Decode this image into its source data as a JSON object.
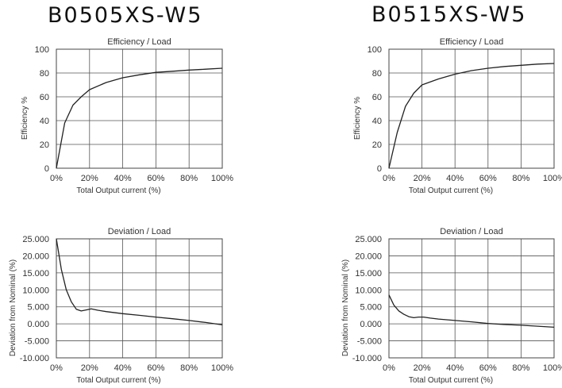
{
  "titles": [
    "B0505XS-W5",
    "B0515XS-W5"
  ],
  "chart_data": [
    {
      "type": "line",
      "model": "B0505XS-W5",
      "title": "Efficiency / Load",
      "xlabel": "Total Output current (%)",
      "ylabel": "Efficiency %",
      "xlim": [
        0,
        100
      ],
      "ylim": [
        0,
        100
      ],
      "x_ticks": [
        0,
        20,
        40,
        60,
        80,
        100
      ],
      "x_tick_labels": [
        "0%",
        "20%",
        "40%",
        "60%",
        "80%",
        "100%"
      ],
      "y_ticks": [
        0,
        20,
        40,
        60,
        80,
        100
      ],
      "y_tick_labels": [
        "0",
        "20",
        "40",
        "60",
        "80",
        "100"
      ],
      "grid": true,
      "series": [
        {
          "x": [
            0,
            5,
            10,
            15,
            20,
            30,
            40,
            50,
            60,
            70,
            80,
            90,
            100
          ],
          "y": [
            0,
            38,
            53,
            60,
            66,
            72,
            76,
            78.5,
            80.5,
            81.5,
            82.5,
            83.2,
            84
          ]
        }
      ]
    },
    {
      "type": "line",
      "model": "B0515XS-W5",
      "title": "Efficiency / Load",
      "xlabel": "Total Output current (%)",
      "ylabel": "Efficiency %",
      "xlim": [
        0,
        100
      ],
      "ylim": [
        0,
        100
      ],
      "x_ticks": [
        0,
        20,
        40,
        60,
        80,
        100
      ],
      "x_tick_labels": [
        "0%",
        "20%",
        "40%",
        "60%",
        "80%",
        "100%"
      ],
      "y_ticks": [
        0,
        20,
        40,
        60,
        80,
        100
      ],
      "y_tick_labels": [
        "0",
        "20",
        "40",
        "60",
        "80",
        "100"
      ],
      "grid": true,
      "series": [
        {
          "x": [
            0,
            5,
            10,
            15,
            20,
            30,
            40,
            50,
            60,
            70,
            80,
            90,
            100
          ],
          "y": [
            0,
            30,
            52,
            63,
            70,
            75,
            79,
            82,
            84,
            85.5,
            86.5,
            87.5,
            88
          ]
        }
      ]
    },
    {
      "type": "line",
      "model": "B0505XS-W5",
      "title": "Deviation / Load",
      "xlabel": "Total Output current (%)",
      "ylabel": "Deviation from Nominal (%)",
      "xlim": [
        0,
        100
      ],
      "ylim": [
        -10,
        25
      ],
      "x_ticks": [
        0,
        20,
        40,
        60,
        80,
        100
      ],
      "x_tick_labels": [
        "0%",
        "20%",
        "40%",
        "60%",
        "80%",
        "100%"
      ],
      "y_ticks": [
        25,
        20,
        15,
        10,
        5,
        0,
        -5,
        -10
      ],
      "y_tick_labels": [
        "25.000",
        "20.000",
        "15.000",
        "10.000",
        "5.000",
        "0.000",
        "-5.000",
        "-10.000"
      ],
      "grid": true,
      "series": [
        {
          "x": [
            0,
            3,
            6,
            9,
            12,
            15,
            18,
            21,
            25,
            30,
            40,
            50,
            60,
            70,
            80,
            90,
            100
          ],
          "y": [
            25,
            16,
            10,
            6.5,
            4.3,
            3.8,
            4.1,
            4.4,
            4.0,
            3.6,
            3.0,
            2.5,
            2.0,
            1.5,
            1.0,
            0.4,
            -0.3
          ]
        }
      ]
    },
    {
      "type": "line",
      "model": "B0515XS-W5",
      "title": "Deviation / Load",
      "xlabel": "Total Output current (%)",
      "ylabel": "Deviation from Nominal (%)",
      "xlim": [
        0,
        100
      ],
      "ylim": [
        -10,
        25
      ],
      "x_ticks": [
        0,
        20,
        40,
        60,
        80,
        100
      ],
      "x_tick_labels": [
        "0%",
        "20%",
        "40%",
        "60%",
        "80%",
        "100%"
      ],
      "y_ticks": [
        25,
        20,
        15,
        10,
        5,
        0,
        -5,
        -10
      ],
      "y_tick_labels": [
        "25.000",
        "20.000",
        "15.000",
        "10.000",
        "5.000",
        "0.000",
        "-5.000",
        "-10.000"
      ],
      "grid": true,
      "series": [
        {
          "x": [
            0,
            3,
            6,
            9,
            12,
            15,
            18,
            21,
            25,
            30,
            40,
            50,
            60,
            70,
            80,
            90,
            100
          ],
          "y": [
            8.5,
            5.5,
            3.8,
            2.8,
            2.1,
            1.8,
            2.0,
            2.0,
            1.7,
            1.4,
            1.0,
            0.6,
            0.1,
            -0.2,
            -0.4,
            -0.7,
            -1.0
          ]
        }
      ]
    }
  ]
}
